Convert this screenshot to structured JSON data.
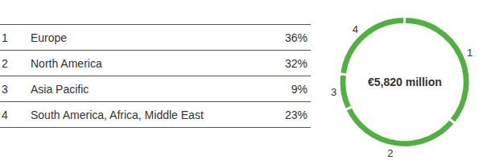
{
  "chart_data": {
    "type": "pie",
    "categories": [
      "Europe",
      "North America",
      "Asia Pacific",
      "South America, Africa, Middle East"
    ],
    "values": [
      36,
      32,
      9,
      23
    ],
    "value_labels": [
      "36%",
      "32%",
      "9%",
      "23%"
    ],
    "slice_labels": [
      "1",
      "2",
      "3",
      "4"
    ],
    "annotation": "€5,820 million",
    "color": "#52b043",
    "legend": "left",
    "data_labels": false
  }
}
